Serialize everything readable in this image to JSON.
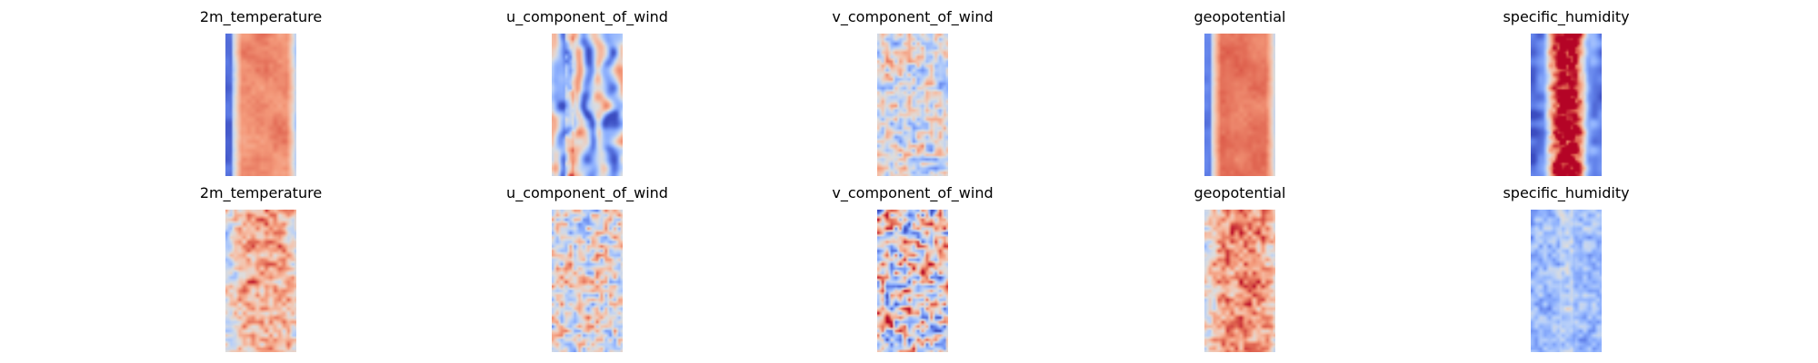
{
  "chart_data": {
    "type": "heatmap",
    "colormap": "coolwarm",
    "axes": "off",
    "layout": {
      "rows": 2,
      "cols": 5
    },
    "panels": [
      {
        "row": 0,
        "col": 0,
        "title": "2m_temperature",
        "pattern": "warm-core",
        "mean": 0.78,
        "edge_level": 0.12,
        "noise": 0.06
      },
      {
        "row": 0,
        "col": 1,
        "title": "u_component_of_wind",
        "pattern": "streaks",
        "mean": 0.38,
        "edge_level": 0.32,
        "noise": 0.18
      },
      {
        "row": 0,
        "col": 2,
        "title": "v_component_of_wind",
        "pattern": "speckle",
        "mean": 0.48,
        "edge_level": 0.45,
        "noise": 0.12
      },
      {
        "row": 0,
        "col": 3,
        "title": "geopotential",
        "pattern": "warm-core",
        "mean": 0.82,
        "edge_level": 0.2,
        "noise": 0.05
      },
      {
        "row": 0,
        "col": 4,
        "title": "specific_humidity",
        "pattern": "humid-core",
        "mean": 0.9,
        "edge_level": 0.05,
        "noise": 0.12
      },
      {
        "row": 1,
        "col": 0,
        "title": "2m_temperature",
        "pattern": "noisy-warm",
        "mean": 0.7,
        "edge_level": 0.45,
        "noise": 0.12
      },
      {
        "row": 1,
        "col": 1,
        "title": "u_component_of_wind",
        "pattern": "speckle",
        "mean": 0.5,
        "edge_level": 0.45,
        "noise": 0.14
      },
      {
        "row": 1,
        "col": 2,
        "title": "v_component_of_wind",
        "pattern": "speckle",
        "mean": 0.5,
        "edge_level": 0.45,
        "noise": 0.22
      },
      {
        "row": 1,
        "col": 3,
        "title": "geopotential",
        "pattern": "noisy-warm",
        "mean": 0.75,
        "edge_level": 0.5,
        "noise": 0.12
      },
      {
        "row": 1,
        "col": 4,
        "title": "specific_humidity",
        "pattern": "cool-field",
        "mean": 0.3,
        "edge_level": 0.25,
        "noise": 0.1
      }
    ]
  }
}
